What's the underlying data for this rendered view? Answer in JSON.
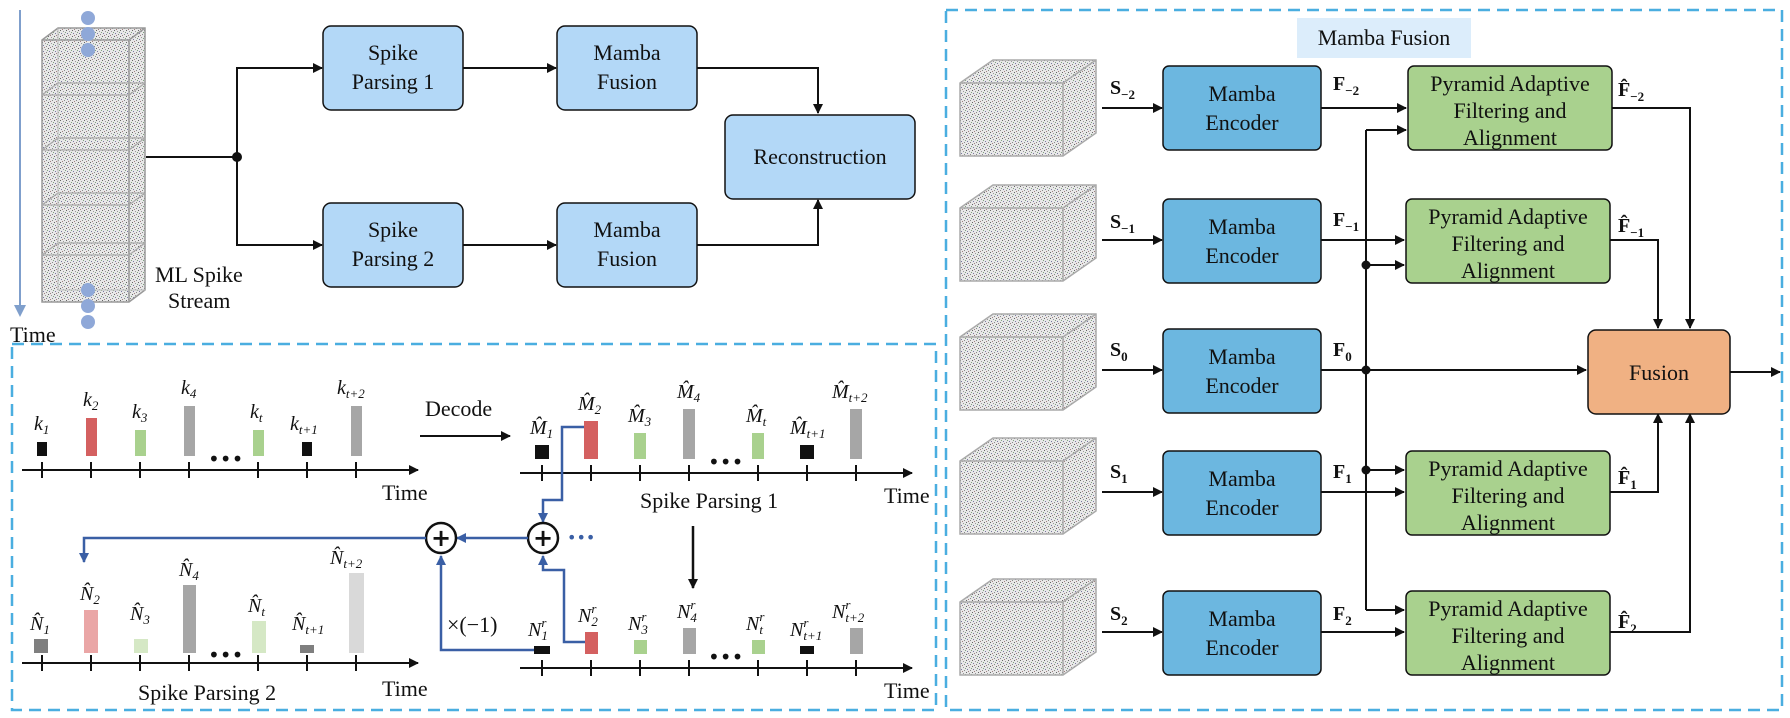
{
  "colors": {
    "light_blue_box": "#b3d8f7",
    "encoder_blue": "#6cb7e0",
    "green_box": "#a9d18e",
    "fusion_orange": "#f0b183",
    "dashed_border": "#4aaee0",
    "arrow_blue": "#3a5fa5",
    "red_bar": "#d46060",
    "green_bar": "#a9d18e",
    "gray_bar": "#a6a6a6"
  },
  "top_left": {
    "spike_parsing_1": [
      "Spike",
      "Parsing 1"
    ],
    "spike_parsing_2": [
      "Spike",
      "Parsing 2"
    ],
    "mamba_fusion_1": [
      "Mamba",
      "Fusion"
    ],
    "mamba_fusion_2": [
      "Mamba",
      "Fusion"
    ],
    "reconstruction": "Reconstruction",
    "stream_label": [
      "ML Spike",
      "Stream"
    ],
    "time_label": "Time"
  },
  "bottom_left": {
    "decode_label": "Decode",
    "time_label": "Time",
    "spike_parsing_1_label": "Spike Parsing 1",
    "spike_parsing_2_label": "Spike Parsing 2",
    "times_neg_one": "×(−1)",
    "plus_symbol": "+",
    "ellipsis": "•••",
    "k_labels": [
      "k",
      "k",
      "k",
      "k",
      "k",
      "k",
      "k"
    ],
    "k_subs": [
      "1",
      "2",
      "3",
      "4",
      "t",
      "t+1",
      "t+2"
    ],
    "m_subs": [
      "1",
      "2",
      "3",
      "4",
      "t",
      "t+1",
      "t+2"
    ],
    "n_subs": [
      "1",
      "2",
      "3",
      "4",
      "t",
      "t+1",
      "t+2"
    ],
    "nr_subs": [
      "1",
      "2",
      "3",
      "4",
      "t",
      "t+1",
      "t+2"
    ]
  },
  "right_panel": {
    "title": "Mamba Fusion",
    "encoder_label": [
      "Mamba",
      "Encoder"
    ],
    "pafa_label": [
      "Pyramid Adaptive",
      "Filtering and",
      "Alignment"
    ],
    "fusion_label": "Fusion",
    "s_subs": [
      "−2",
      "−1",
      "0",
      "1",
      "2"
    ],
    "f_subs": [
      "−2",
      "−1",
      "0",
      "1",
      "2"
    ],
    "fhat_subs": [
      "−2",
      "−1",
      "1",
      "2"
    ]
  }
}
